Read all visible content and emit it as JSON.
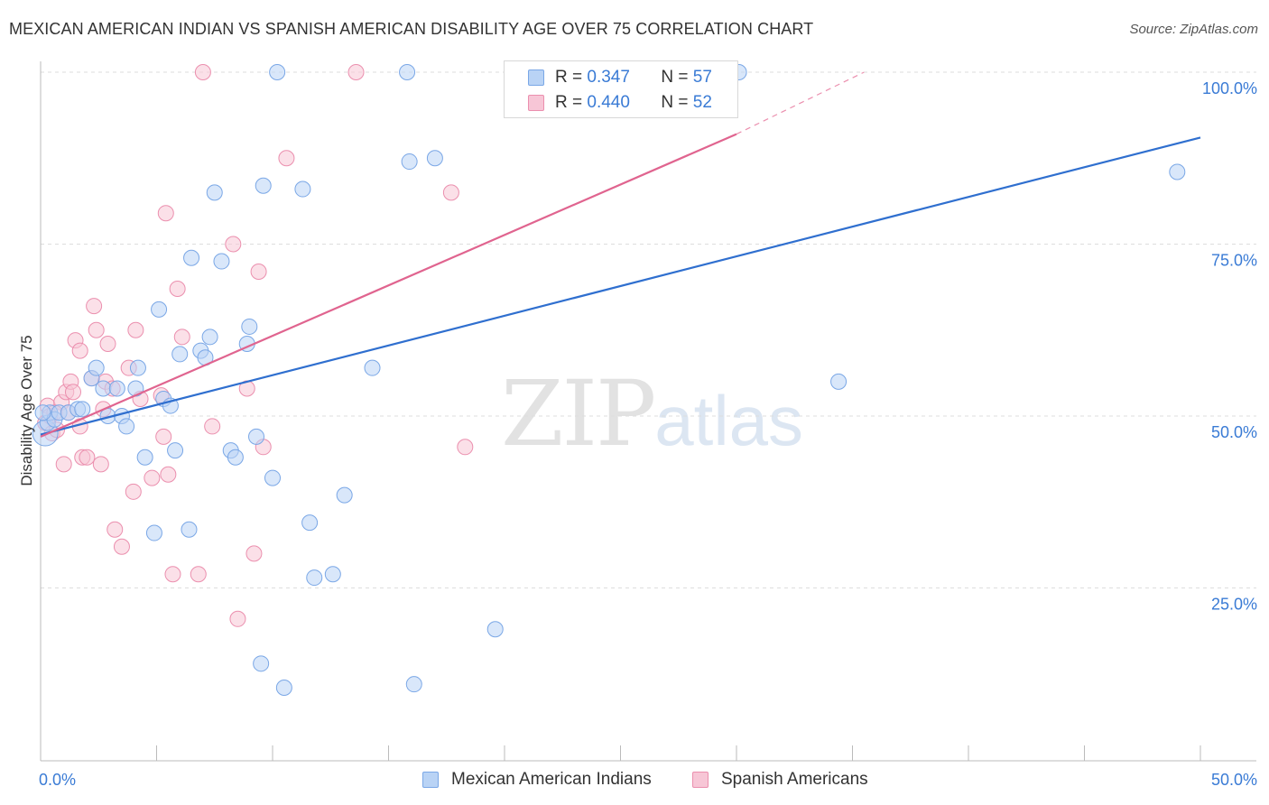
{
  "title": "MEXICAN AMERICAN INDIAN VS SPANISH AMERICAN DISABILITY AGE OVER 75 CORRELATION CHART",
  "source": "Source: ZipAtlas.com",
  "watermark": {
    "zip": "ZIP",
    "atlas": "atlas"
  },
  "legend": {
    "row1": {
      "r_label": "R =",
      "r_value": "0.347",
      "n_label": "N =",
      "n_value": "57"
    },
    "row2": {
      "r_label": "R =",
      "r_value": "0.440",
      "n_label": "N =",
      "n_value": "52"
    }
  },
  "colors": {
    "blue_fill": "#b9d3f5",
    "blue_stroke": "#7aa7e6",
    "blue_line": "#2f6fcf",
    "pink_fill": "#f7c6d6",
    "pink_stroke": "#eb8fae",
    "pink_line": "#e0648f",
    "grid": "#dddddd",
    "tick_text": "#3a7bd5"
  },
  "chart_data": {
    "type": "scatter",
    "title": "MEXICAN AMERICAN INDIAN VS SPANISH AMERICAN DISABILITY AGE OVER 75 CORRELATION CHART",
    "xlabel": "",
    "ylabel": "Disability Age Over 75",
    "xlim": [
      0,
      50
    ],
    "ylim": [
      0,
      100
    ],
    "x_tick_labels": [
      "0.0%",
      "50.0%"
    ],
    "y_tick_labels": [
      "25.0%",
      "50.0%",
      "75.0%",
      "100.0%"
    ],
    "y_ticks": [
      25,
      50,
      75,
      100
    ],
    "grid": true,
    "legend_position": "top-center",
    "series": [
      {
        "name": "Mexican American Indians",
        "color": "#b9d3f5",
        "R": 0.347,
        "N": 57,
        "trend": {
          "x": [
            0,
            50
          ],
          "y": [
            47.3,
            90.5
          ]
        },
        "points": [
          [
            0.2,
            47.5
          ],
          [
            0.3,
            49
          ],
          [
            0.4,
            50.5
          ],
          [
            0.6,
            49.5
          ],
          [
            0.8,
            50.5
          ],
          [
            1.2,
            50.5
          ],
          [
            1.6,
            51
          ],
          [
            1.8,
            51
          ],
          [
            2.2,
            55.5
          ],
          [
            2.4,
            57
          ],
          [
            2.7,
            54
          ],
          [
            2.9,
            50
          ],
          [
            3.3,
            54
          ],
          [
            3.5,
            50
          ],
          [
            3.7,
            48.5
          ],
          [
            4.1,
            54
          ],
          [
            4.2,
            57
          ],
          [
            4.5,
            44
          ],
          [
            4.9,
            33
          ],
          [
            5.1,
            65.5
          ],
          [
            5.3,
            52.5
          ],
          [
            5.6,
            51.5
          ],
          [
            5.8,
            45
          ],
          [
            6.0,
            59
          ],
          [
            6.4,
            33.5
          ],
          [
            6.5,
            73
          ],
          [
            6.9,
            59.5
          ],
          [
            7.1,
            58.5
          ],
          [
            7.3,
            61.5
          ],
          [
            7.5,
            82.5
          ],
          [
            7.8,
            72.5
          ],
          [
            8.2,
            45
          ],
          [
            8.4,
            44
          ],
          [
            8.9,
            60.5
          ],
          [
            9.0,
            63
          ],
          [
            9.3,
            47
          ],
          [
            9.5,
            14
          ],
          [
            9.6,
            83.5
          ],
          [
            10.0,
            41
          ],
          [
            10.2,
            100
          ],
          [
            10.5,
            10.5
          ],
          [
            11.3,
            83
          ],
          [
            11.6,
            34.5
          ],
          [
            11.8,
            26.5
          ],
          [
            12.6,
            27
          ],
          [
            13.1,
            38.5
          ],
          [
            14.3,
            57
          ],
          [
            15.8,
            100
          ],
          [
            15.9,
            87
          ],
          [
            16.1,
            11
          ],
          [
            17.0,
            87.5
          ],
          [
            19.6,
            19
          ],
          [
            25.5,
            100
          ],
          [
            30.1,
            100
          ],
          [
            34.4,
            55
          ],
          [
            49,
            85.5
          ],
          [
            0.1,
            50.5
          ]
        ]
      },
      {
        "name": "Spanish Americans",
        "color": "#f7c6d6",
        "R": 0.44,
        "N": 52,
        "trend": {
          "x": [
            0,
            30
          ],
          "y": [
            47,
            91
          ]
        },
        "trend_dashed": {
          "x": [
            30,
            35.5
          ],
          "y": [
            91,
            100
          ]
        },
        "points": [
          [
            0.2,
            49
          ],
          [
            0.3,
            51.5
          ],
          [
            0.5,
            47.5
          ],
          [
            0.7,
            48
          ],
          [
            0.9,
            52
          ],
          [
            1.0,
            43
          ],
          [
            1.1,
            53.5
          ],
          [
            1.2,
            50.5
          ],
          [
            1.3,
            55
          ],
          [
            1.4,
            53.5
          ],
          [
            1.5,
            61
          ],
          [
            1.7,
            48.5
          ],
          [
            1.7,
            59.5
          ],
          [
            1.8,
            44
          ],
          [
            2.0,
            44
          ],
          [
            2.2,
            55.5
          ],
          [
            2.3,
            66
          ],
          [
            2.4,
            62.5
          ],
          [
            2.6,
            43
          ],
          [
            2.7,
            51
          ],
          [
            2.8,
            55
          ],
          [
            2.9,
            60.5
          ],
          [
            3.1,
            54
          ],
          [
            3.2,
            33.5
          ],
          [
            3.5,
            31
          ],
          [
            3.8,
            57
          ],
          [
            4.0,
            39
          ],
          [
            4.1,
            62.5
          ],
          [
            4.3,
            52.5
          ],
          [
            4.8,
            41
          ],
          [
            5.2,
            53
          ],
          [
            5.3,
            47
          ],
          [
            5.4,
            79.5
          ],
          [
            5.5,
            41.5
          ],
          [
            5.7,
            27
          ],
          [
            5.9,
            68.5
          ],
          [
            6.1,
            61.5
          ],
          [
            6.8,
            27
          ],
          [
            7.0,
            100
          ],
          [
            7.4,
            48.5
          ],
          [
            8.3,
            75
          ],
          [
            8.5,
            20.5
          ],
          [
            8.9,
            54
          ],
          [
            9.2,
            30
          ],
          [
            9.4,
            71
          ],
          [
            9.6,
            45.5
          ],
          [
            10.6,
            87.5
          ],
          [
            13.6,
            100
          ],
          [
            17.7,
            82.5
          ],
          [
            18.3,
            45.5
          ],
          [
            0.4,
            50
          ],
          [
            0.6,
            50.5
          ]
        ]
      }
    ]
  }
}
